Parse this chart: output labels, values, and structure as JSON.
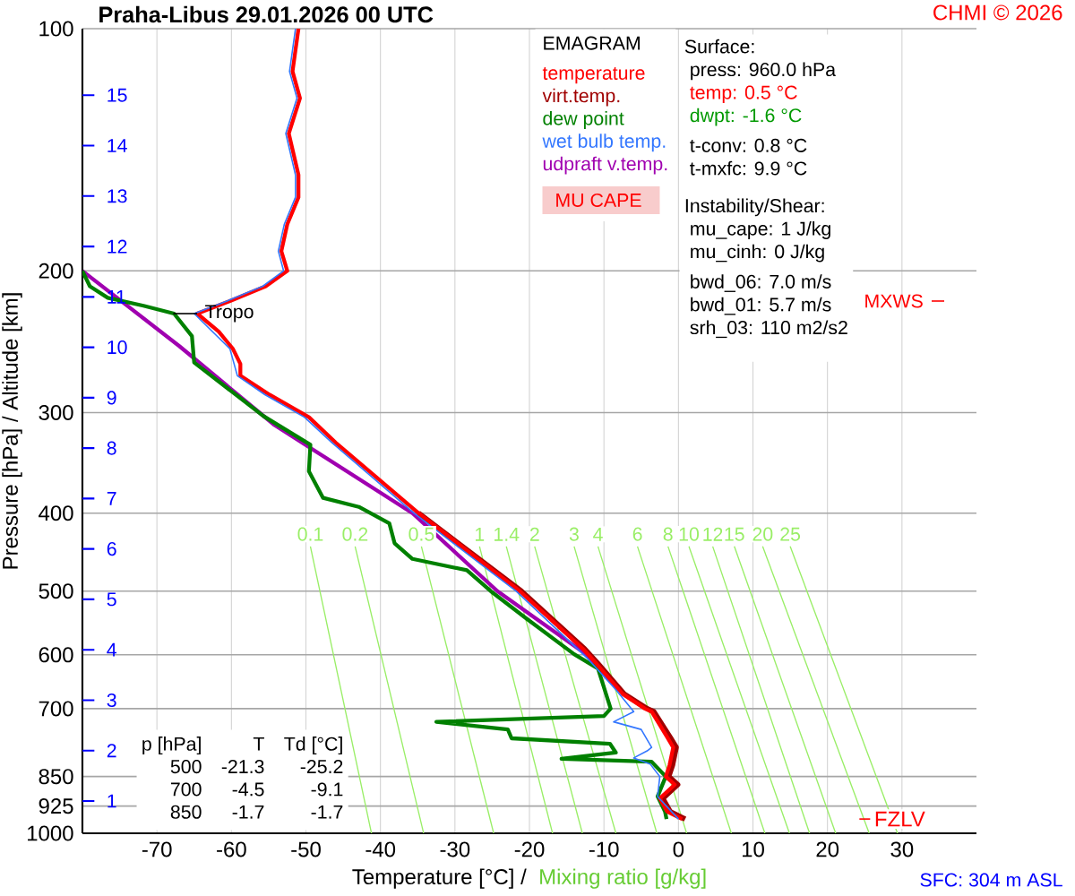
{
  "chart_data": {
    "type": "line",
    "title": "Praha-Libus   29.01.2026 00 UTC",
    "xlabel": "Temperature [°C]  /",
    "ylabel": "Pressure [hPa]  /  Altitude [km]",
    "legend_title": "EMAGRAM",
    "xlim": [
      -80,
      40
    ],
    "ylim": [
      1000,
      100
    ],
    "log": "y",
    "grid": true,
    "legend": "top",
    "xticks": [
      -70,
      -60,
      -50,
      -40,
      -30,
      -20,
      -10,
      0,
      10,
      20,
      30
    ],
    "yticks": [
      100,
      200,
      300,
      400,
      500,
      600,
      700,
      850,
      925,
      1000
    ],
    "y2lim": [
      0.36,
      16.32
    ],
    "y2ticks": [
      1,
      2,
      3,
      4,
      5,
      6,
      7,
      8,
      9,
      10,
      11,
      12,
      13,
      14,
      15
    ],
    "series": [
      {
        "name": "temperature",
        "color": "#ff0000",
        "x": [
          0.5,
          -1.5,
          -2.5,
          -0.5,
          -1.7,
          -1.2,
          -0.7,
          -1.5,
          -3.6,
          -4.5,
          -7.5,
          -11.1,
          -12.8,
          -21.3,
          -34.9,
          -46,
          -49.6,
          -54.9,
          -58.8,
          -58.8,
          -59.8,
          -61.7,
          -64.6,
          -60.2,
          -55.4,
          -52.5,
          -53.3,
          -52.5,
          -51,
          -51,
          -52.3,
          -50.8,
          -51.8,
          -51
        ],
        "values": [
          960,
          940,
          905,
          870,
          850,
          823,
          782,
          760,
          706,
          700,
          671,
          614,
          590,
          500,
          400,
          327,
          304,
          285,
          270,
          261,
          250,
          238,
          226,
          218,
          209,
          200,
          189,
          175,
          162,
          152,
          135,
          122,
          113,
          100
        ]
      },
      {
        "name": "virt.temp.",
        "color": "#a00000",
        "x": [
          0.9,
          -1.1,
          -2.1,
          -0.1,
          -1.3,
          -0.8,
          -0.3,
          -1.1,
          -3.3,
          -4.2,
          -7.3,
          -10.9,
          -12.6,
          -21.1,
          -34.9
        ],
        "values": [
          960,
          940,
          905,
          870,
          850,
          823,
          782,
          760,
          706,
          700,
          671,
          614,
          590,
          500,
          400
        ]
      },
      {
        "name": "dew point",
        "color": "#008000",
        "x": [
          -1.6,
          -1.8,
          -2.8,
          -1.7,
          -3.6,
          -15.7,
          -8.4,
          -9.2,
          -22.4,
          -22.9,
          -32.5,
          -10,
          -9.1,
          -10.8,
          -14,
          -20.5,
          -25.2,
          -28.4,
          -35.7,
          -38.1,
          -38.8,
          -42.9,
          -47.7,
          -49.6,
          -49.4,
          -55.7,
          -60.5,
          -65,
          -65.3,
          -67.7,
          -71.8,
          -76.6,
          -79,
          -80
        ],
        "values": [
          960,
          940,
          900,
          850,
          815,
          808,
          794,
          774,
          762,
          743,
          727,
          715,
          700,
          624,
          599,
          540,
          500,
          471,
          456,
          436,
          412,
          393,
          383,
          355,
          329,
          303,
          280,
          260,
          241,
          226,
          221,
          216,
          209,
          200
        ]
      },
      {
        "name": "wet bulb temp.",
        "color": "#3377ff",
        "x": [
          0,
          -2.8,
          -2.5,
          -3.8,
          -6,
          -4.2,
          -3.6,
          -5,
          -8.7,
          -6,
          -8.4,
          -12.3,
          -21.8,
          -35.5,
          -46.5,
          -50.2,
          -55.5,
          -59.2,
          -60.2,
          -65,
          -60.6,
          -55.8,
          -53,
          -53.7,
          -52.9,
          -51.4,
          -51.4,
          -52.7,
          -51.2,
          -52.2,
          -51.4
        ],
        "values": [
          960,
          900,
          850,
          820,
          806,
          790,
          782,
          743,
          727,
          706,
          663,
          605,
          500,
          400,
          327,
          304,
          285,
          270,
          250,
          226,
          218,
          209,
          200,
          189,
          175,
          162,
          152,
          135,
          122,
          113,
          100
        ]
      },
      {
        "name": "udpraft v.temp.",
        "color": "#a000b0",
        "x": [
          -8,
          -12.3,
          -24.3,
          -35.7,
          -54.2,
          -67,
          -80
        ],
        "values": [
          663,
          600,
          500,
          400,
          311,
          248,
          200
        ]
      },
      {
        "name": "0.1",
        "color": "#99ee66",
        "x": [
          -41.2,
          -49.4
        ],
        "values": [
          1000,
          440
        ]
      },
      {
        "name": "0.2",
        "color": "#99ee66",
        "x": [
          -34.2,
          -43.4
        ],
        "values": [
          1000,
          440
        ]
      },
      {
        "name": "0.5",
        "color": "#99ee66",
        "x": [
          -24.8,
          -34.5
        ],
        "values": [
          1000,
          440
        ]
      },
      {
        "name": "1",
        "color": "#99ee66",
        "x": [
          -16.9,
          -26.7
        ],
        "values": [
          1000,
          440
        ]
      },
      {
        "name": "1.4",
        "color": "#99ee66",
        "x": [
          -12.9,
          -23.1
        ],
        "values": [
          1000,
          440
        ]
      },
      {
        "name": "2",
        "color": "#99ee66",
        "x": [
          -8.4,
          -19.3
        ],
        "values": [
          1000,
          440
        ]
      },
      {
        "name": "3",
        "color": "#99ee66",
        "x": [
          -2.9,
          -14
        ],
        "values": [
          1000,
          440
        ]
      },
      {
        "name": "4",
        "color": "#99ee66",
        "x": [
          1.1,
          -10.8
        ],
        "values": [
          1000,
          440
        ]
      },
      {
        "name": "6",
        "color": "#99ee66",
        "x": [
          7.1,
          -5.5
        ],
        "values": [
          1000,
          440
        ]
      },
      {
        "name": "8",
        "color": "#99ee66",
        "x": [
          11.6,
          -1.4
        ],
        "values": [
          1000,
          440
        ]
      },
      {
        "name": "10",
        "color": "#99ee66",
        "x": [
          14.9,
          1.4
        ],
        "values": [
          1000,
          440
        ]
      },
      {
        "name": "12",
        "color": "#99ee66",
        "x": [
          17.6,
          4.6
        ],
        "values": [
          1000,
          440
        ]
      },
      {
        "name": "15",
        "color": "#99ee66",
        "x": [
          21.1,
          7.5
        ],
        "values": [
          1000,
          440
        ]
      },
      {
        "name": "20",
        "color": "#99ee66",
        "x": [
          25.6,
          11.3
        ],
        "values": [
          1000,
          440
        ]
      },
      {
        "name": "25",
        "color": "#99ee66",
        "x": [
          29.4,
          15
        ],
        "values": [
          1000,
          440
        ]
      }
    ],
    "annotations": [
      "Mixing ratio [g/kg]",
      "MU CAPE",
      "CHMI © 2026",
      "SFC: 304 m ASL",
      {
        "text": "Tropo",
        "x": -64.6,
        "y": 226
      },
      "MXWS",
      {
        "text": "FZLV",
        "y": 960
      },
      "Surface:",
      "press: 960.0 hPa",
      "temp: 0.5 °C",
      "dwpt: -1.6 °C",
      "t-conv: 0.8 °C",
      "t-mxfc: 9.9 °C",
      "Instability/Shear:",
      "mu_cape: 1 J/kg",
      "mu_cinh: 0 J/kg",
      "bwd_06: 7.0 m/s",
      "bwd_01: 5.7 m/s",
      "srh_03: 110 m2/s2",
      "p [hPa]",
      "T",
      "Td [°C]",
      "500",
      "-21.3",
      "-25.2",
      "700",
      "-4.5",
      "-9.1",
      "850",
      "-1.7",
      "-1.7"
    ]
  }
}
